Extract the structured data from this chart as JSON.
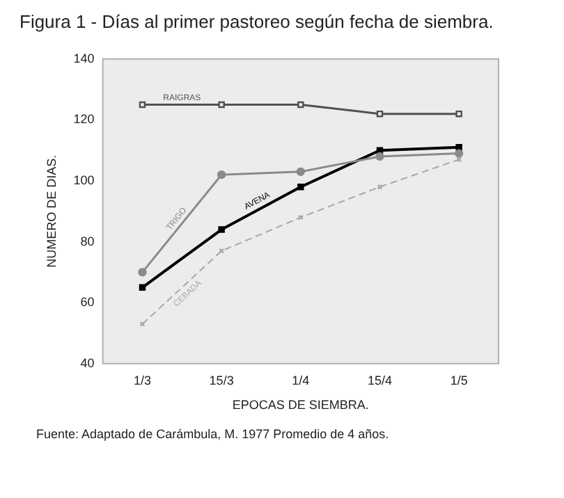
{
  "chart_data": {
    "type": "line",
    "title": "Figura 1 - Días al primer pastoreo según fecha de siembra.",
    "xlabel": "EPOCAS DE SIEMBRA.",
    "ylabel": "NUMERO DE DIAS.",
    "categories": [
      "1/3",
      "15/3",
      "1/4",
      "15/4",
      "1/5"
    ],
    "series": [
      {
        "name": "RAIGRAS",
        "color": "#505050",
        "values": [
          125,
          125,
          125,
          122,
          122
        ],
        "marker": "square",
        "line_style": "solid"
      },
      {
        "name": "TRIGO",
        "color": "#8a8a8a",
        "values": [
          70,
          102,
          103,
          108,
          109
        ],
        "marker": "circle",
        "line_style": "solid"
      },
      {
        "name": "AVENA",
        "color": "#000000",
        "values": [
          65,
          84,
          98,
          110,
          111
        ],
        "marker": "square",
        "line_style": "solid"
      },
      {
        "name": "CEBADA",
        "color": "#a8a8a8",
        "values": [
          53,
          77,
          88,
          98,
          107
        ],
        "marker": "cross",
        "line_style": "dashed"
      }
    ],
    "ylim": [
      40,
      140
    ],
    "yticks": [
      40,
      60,
      80,
      100,
      120,
      140
    ],
    "grid": false,
    "legend": false,
    "annotations": [
      "Fuente: Adaptado de Carámbula, M. 1977 Promedio de 4 años."
    ]
  }
}
